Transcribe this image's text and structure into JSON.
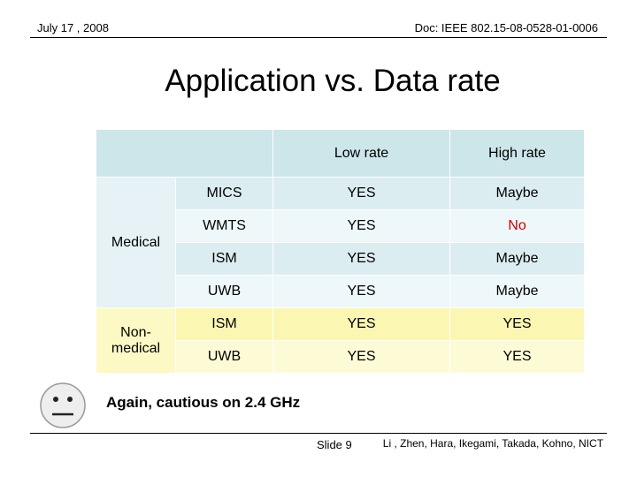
{
  "header": {
    "date": "July 17 , 2008",
    "doc_id": "Doc: IEEE 802.15-08-0528-01-0006"
  },
  "title": "Application vs. Data rate",
  "table": {
    "columns": [
      "Low rate",
      "High rate"
    ],
    "groups": [
      {
        "label": "Medical",
        "rows": [
          {
            "band": "MICS",
            "low": "YES",
            "high": "Maybe"
          },
          {
            "band": "WMTS",
            "low": "YES",
            "high": "No"
          },
          {
            "band": "ISM",
            "low": "YES",
            "high": "Maybe"
          },
          {
            "band": "UWB",
            "low": "YES",
            "high": "Maybe"
          }
        ]
      },
      {
        "label": "Non-medical",
        "rows": [
          {
            "band": "ISM",
            "low": "YES",
            "high": "YES"
          },
          {
            "band": "UWB",
            "low": "YES",
            "high": "YES"
          }
        ]
      }
    ]
  },
  "note": "Again, cautious on 2.4 GHz",
  "footer": {
    "slide": "Slide 9",
    "authors": "Li , Zhen, Hara, Ikegami, Takada, Kohno, NICT"
  },
  "colors": {
    "header_cell": "#cce6ea",
    "medical_rows": "#dcedf1",
    "nonmedical_rows": "#fbf7b3",
    "emphasis": "#cc0000"
  },
  "icons": {
    "note_icon": "neutral-face-icon"
  }
}
